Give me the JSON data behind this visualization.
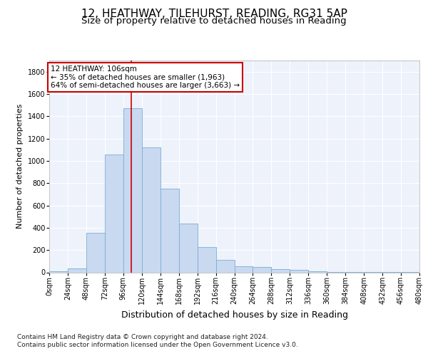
{
  "title_line1": "12, HEATHWAY, TILEHURST, READING, RG31 5AP",
  "title_line2": "Size of property relative to detached houses in Reading",
  "xlabel": "Distribution of detached houses by size in Reading",
  "ylabel": "Number of detached properties",
  "footnote1": "Contains HM Land Registry data © Crown copyright and database right 2024.",
  "footnote2": "Contains public sector information licensed under the Open Government Licence v3.0.",
  "annotation_line1": "12 HEATHWAY: 106sqm",
  "annotation_line2": "← 35% of detached houses are smaller (1,963)",
  "annotation_line3": "64% of semi-detached houses are larger (3,663) →",
  "bar_values": [
    10,
    35,
    355,
    1060,
    1470,
    1120,
    750,
    435,
    225,
    110,
    55,
    45,
    30,
    20,
    10,
    5,
    3,
    2,
    1,
    1
  ],
  "bin_edges": [
    0,
    24,
    48,
    72,
    96,
    120,
    144,
    168,
    192,
    216,
    240,
    264,
    288,
    312,
    336,
    360,
    384,
    408,
    432,
    456,
    480
  ],
  "tick_labels": [
    "0sqm",
    "24sqm",
    "48sqm",
    "72sqm",
    "96sqm",
    "120sqm",
    "144sqm",
    "168sqm",
    "192sqm",
    "216sqm",
    "240sqm",
    "264sqm",
    "288sqm",
    "312sqm",
    "336sqm",
    "360sqm",
    "384sqm",
    "408sqm",
    "432sqm",
    "456sqm",
    "480sqm"
  ],
  "bar_color": "#c9d9f0",
  "bar_edge_color": "#7aadd4",
  "vline_x": 106,
  "vline_color": "#cc0000",
  "ylim": [
    0,
    1900
  ],
  "xlim": [
    0,
    480
  ],
  "yticks": [
    0,
    200,
    400,
    600,
    800,
    1000,
    1200,
    1400,
    1600,
    1800
  ],
  "background_color": "#e8eef8",
  "plot_bg_color": "#eef2fb",
  "annotation_box_color": "#ffffff",
  "annotation_border_color": "#cc0000",
  "title_fontsize": 11,
  "subtitle_fontsize": 9.5,
  "axis_label_fontsize": 9,
  "tick_fontsize": 7,
  "ylabel_fontsize": 8,
  "footnote_fontsize": 6.5,
  "annotation_fontsize": 7.5
}
